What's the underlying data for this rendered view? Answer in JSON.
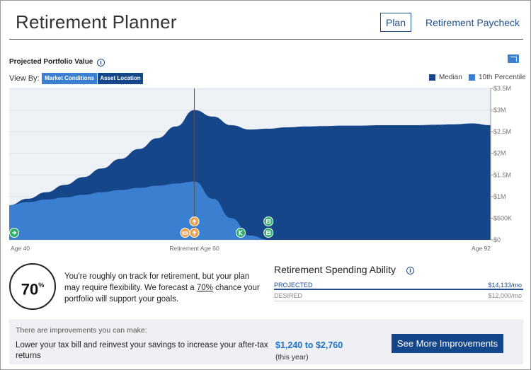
{
  "header": {
    "title": "Retirement Planner",
    "tab_plan": "Plan",
    "tab_paycheck": "Retirement Paycheck"
  },
  "chart_section": {
    "title": "Projected Portfolio Value",
    "view_by_label": "View By:",
    "view_by_options": [
      "Market Conditions",
      "Asset Location"
    ],
    "selected_view": "Asset Location"
  },
  "chart_data": {
    "type": "area",
    "title": "Projected Portfolio Value",
    "x": [
      40,
      42,
      44,
      46,
      48,
      50,
      52,
      54,
      56,
      58,
      60,
      62,
      64,
      66,
      68,
      70,
      72,
      74,
      76,
      78,
      80,
      82,
      84,
      86,
      88,
      90,
      92
    ],
    "series": [
      {
        "name": "Median",
        "color": "#16468a",
        "values": [
          0.8,
          0.95,
          1.1,
          1.27,
          1.45,
          1.65,
          1.87,
          2.1,
          2.35,
          2.62,
          3.0,
          2.85,
          2.65,
          2.55,
          2.57,
          2.6,
          2.62,
          2.63,
          2.64,
          2.64,
          2.65,
          2.65,
          2.65,
          2.66,
          2.67,
          2.69,
          2.65
        ]
      },
      {
        "name": "10th Percentile",
        "color": "#3a7fd0",
        "values": [
          0.8,
          0.87,
          0.93,
          0.98,
          1.04,
          1.1,
          1.15,
          1.2,
          1.25,
          1.3,
          1.35,
          0.95,
          0.5,
          0.1,
          0.0,
          0.0,
          0.0,
          0.0,
          0.0,
          0.0,
          0.0,
          0.0,
          0.0,
          0.0,
          0.0,
          0.0,
          0.0
        ]
      }
    ],
    "y_ticks": [
      "$3.5M",
      "$3M",
      "$2.5M",
      "$2M",
      "$1.5M",
      "$1M",
      "$500K",
      "$0"
    ],
    "ylim": [
      0,
      3.5
    ],
    "x_labels": [
      "Age 40",
      "Retirement Age 60",
      "Age 92"
    ],
    "retirement_age": 60,
    "legend_position": "top-right",
    "event_markers": [
      {
        "age": 40,
        "icon": "arrow-right-icon",
        "color": "#2fae6a"
      },
      {
        "age": 60,
        "icon": "arrow-up-icon",
        "color": "#f0a24a"
      },
      {
        "age": 60,
        "icon": "arrow-up-icon",
        "color": "#f0a24a"
      },
      {
        "age": 59,
        "icon": "paycheck-icon",
        "color": "#f0a24a"
      },
      {
        "age": 65,
        "icon": "social-security-icon",
        "color": "#2fae6a"
      },
      {
        "age": 68,
        "icon": "calendar-icon",
        "color": "#2fae6a"
      },
      {
        "age": 68,
        "icon": "calendar-icon",
        "color": "#2fae6a"
      }
    ]
  },
  "legend": {
    "median": "Median",
    "tenth": "10th Percentile",
    "median_color": "#16468a",
    "tenth_color": "#3a7fd0"
  },
  "score": {
    "value": "70",
    "unit": "%",
    "text_before": "You're roughly on track for retirement, but your plan may require flexibility. We forecast a ",
    "text_pct": "70%",
    "text_after": " chance your portfolio will support your goals."
  },
  "spending": {
    "title": "Retirement Spending Ability",
    "projected_label": "PROJECTED",
    "projected_value": "$14,133/mo",
    "desired_label": "DESIRED",
    "desired_value": "$12,000/mo"
  },
  "improvements": {
    "heading": "There are improvements you can make:",
    "text": "Lower your tax bill and reinvest your savings to increase your after-tax returns",
    "range": "$1,240 to $2,760",
    "sub": "(this year)",
    "button": "See More Improvements"
  }
}
